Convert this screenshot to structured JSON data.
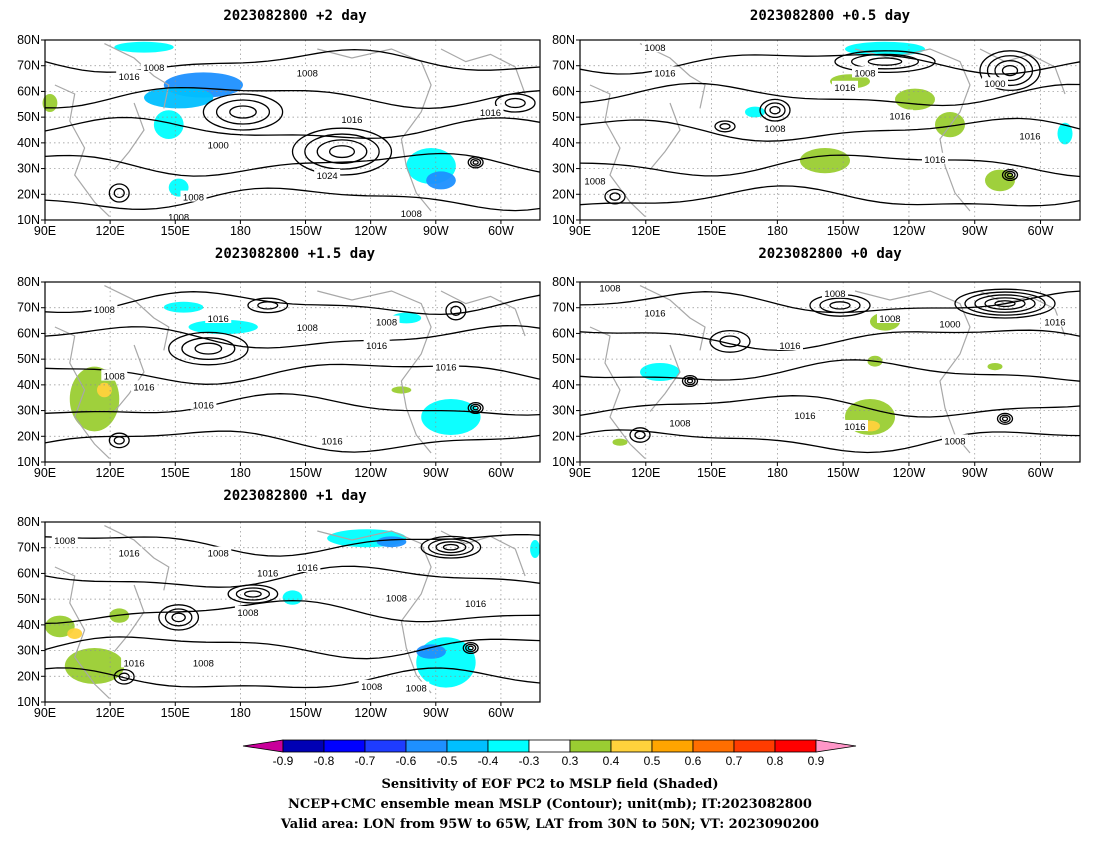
{
  "panels": [
    {
      "id": "p1",
      "title": "2023082800  +2 day",
      "contour_labels": [
        "1008",
        "1016",
        "1008",
        "1008",
        "1016",
        "1000",
        "1024",
        "1016",
        "1008",
        "1008"
      ]
    },
    {
      "id": "p2",
      "title": "2023082800  +0.5 day",
      "contour_labels": [
        "1008",
        "1016",
        "1008",
        "1016",
        "1016",
        "1016",
        "1000",
        "1008",
        "1016",
        "1008"
      ]
    },
    {
      "id": "p3",
      "title": "2023082800  +1.5 day",
      "contour_labels": [
        "1008",
        "1008",
        "1016",
        "1008",
        "1016",
        "1016",
        "1008",
        "1016",
        "1016",
        "1016"
      ]
    },
    {
      "id": "p4",
      "title": "2023082800  +0 day",
      "contour_labels": [
        "1008",
        "1016",
        "1008",
        "1016",
        "1008",
        "1016",
        "1000",
        "1016",
        "1008",
        "1008",
        "1016"
      ]
    },
    {
      "id": "p5",
      "title": "2023082800  +1 day",
      "contour_labels": [
        "1008",
        "1016",
        "1016",
        "1016",
        "1008",
        "1008",
        "1008",
        "1016",
        "1008",
        "1016",
        "1008",
        "1008"
      ]
    }
  ],
  "map_axes": {
    "lat_labels": [
      "80N",
      "70N",
      "60N",
      "50N",
      "40N",
      "30N",
      "20N",
      "10N"
    ],
    "lon_labels": [
      "90E",
      "120E",
      "150E",
      "180",
      "150W",
      "120W",
      "90W",
      "60W"
    ]
  },
  "colorbar": {
    "labels": [
      "-0.9",
      "-0.8",
      "-0.7",
      "-0.6",
      "-0.5",
      "-0.4",
      "-0.3",
      "0.3",
      "0.4",
      "0.5",
      "0.6",
      "0.7",
      "0.8",
      "0.9"
    ],
    "colors": [
      "#c8009a",
      "#0000b4",
      "#0000ff",
      "#1e3cff",
      "#1e90ff",
      "#00bfff",
      "#00ffff",
      "#ffffff",
      "#9acd32",
      "#ffd23c",
      "#ffa500",
      "#ff6e00",
      "#ff3c00",
      "#ff0000",
      "#ff96c8"
    ]
  },
  "footer": {
    "line1": "Sensitivity of EOF PC2 to MSLP field (Shaded)",
    "line2": "NCEP+CMC ensemble mean MSLP (Contour); unit(mb); IT:2023082800",
    "line3": "Valid area: LON from 95W to 65W, LAT from 30N to 50N; VT: 2023090200"
  }
}
